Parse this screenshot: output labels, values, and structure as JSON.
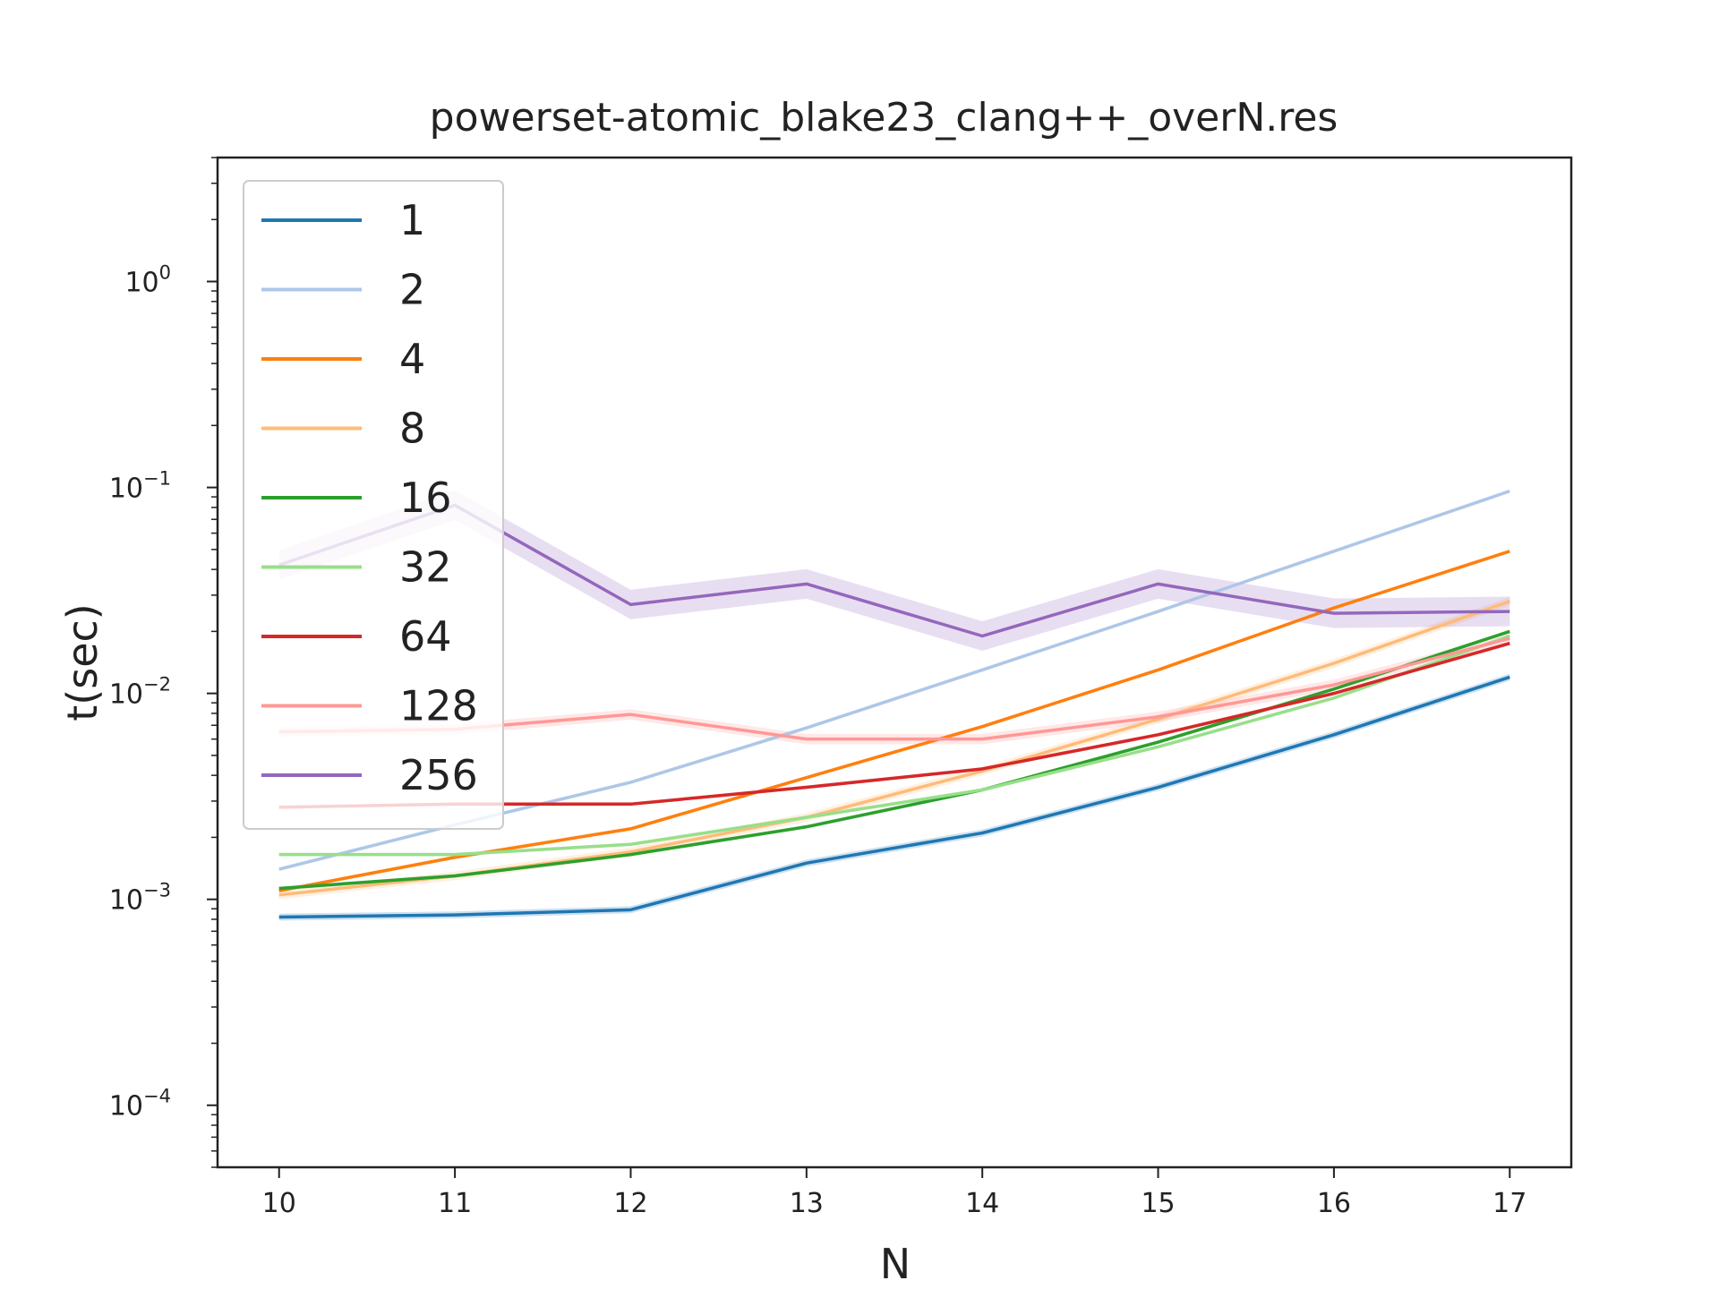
{
  "chart_data": {
    "type": "line",
    "title": "powerset-atomic_blake23_clang++_overN.res",
    "xlabel": "N",
    "ylabel": "t(sec)",
    "yscale": "log",
    "xlim": [
      9.65,
      17.35
    ],
    "ylim": [
      5e-05,
      4
    ],
    "x": [
      10,
      11,
      12,
      13,
      14,
      15,
      16,
      17
    ],
    "xticks": [
      "10",
      "11",
      "12",
      "13",
      "14",
      "15",
      "16",
      "17"
    ],
    "yticks": [
      {
        "value": 0.0001,
        "base": "10",
        "exp": "−4"
      },
      {
        "value": 0.001,
        "base": "10",
        "exp": "−3"
      },
      {
        "value": 0.01,
        "base": "10",
        "exp": "−2"
      },
      {
        "value": 0.1,
        "base": "10",
        "exp": "−1"
      },
      {
        "value": 1,
        "base": "10",
        "exp": "0"
      }
    ],
    "grid": false,
    "legend": "upper-left",
    "series": [
      {
        "name": "1",
        "color": "#1f77b4",
        "values": [
          0.00082,
          0.00084,
          0.00089,
          0.0015,
          0.0021,
          0.0035,
          0.0063,
          0.012
        ],
        "band": 0.04
      },
      {
        "name": "2",
        "color": "#aec7e8",
        "values": [
          0.0014,
          0.0023,
          0.0037,
          0.0068,
          0.013,
          0.025,
          0.049,
          0.096
        ],
        "band": 0.02
      },
      {
        "name": "4",
        "color": "#ff7f0e",
        "values": [
          0.0011,
          0.0016,
          0.0022,
          0.0039,
          0.0069,
          0.013,
          0.026,
          0.049
        ],
        "band": 0.02
      },
      {
        "name": "8",
        "color": "#ffbb78",
        "values": [
          0.00105,
          0.0013,
          0.0017,
          0.0025,
          0.0042,
          0.0075,
          0.014,
          0.028
        ],
        "band": 0.05
      },
      {
        "name": "16",
        "color": "#2ca02c",
        "values": [
          0.00113,
          0.0013,
          0.00165,
          0.00225,
          0.0034,
          0.0058,
          0.0105,
          0.02
        ],
        "band": 0.02
      },
      {
        "name": "32",
        "color": "#98df8a",
        "values": [
          0.00165,
          0.00165,
          0.00185,
          0.0025,
          0.0034,
          0.0055,
          0.0095,
          0.019
        ],
        "band": 0.02
      },
      {
        "name": "64",
        "color": "#d62728",
        "values": [
          0.0028,
          0.0029,
          0.0029,
          0.0035,
          0.0043,
          0.0063,
          0.01,
          0.0175
        ],
        "band": 0.02
      },
      {
        "name": "128",
        "color": "#ff9896",
        "values": [
          0.0065,
          0.0067,
          0.0079,
          0.006,
          0.006,
          0.0077,
          0.011,
          0.0185
        ],
        "band": 0.06
      },
      {
        "name": "256",
        "color": "#9467bd",
        "values": [
          0.042,
          0.082,
          0.027,
          0.034,
          0.019,
          0.034,
          0.0245,
          0.025
        ],
        "band": 0.18
      }
    ]
  }
}
